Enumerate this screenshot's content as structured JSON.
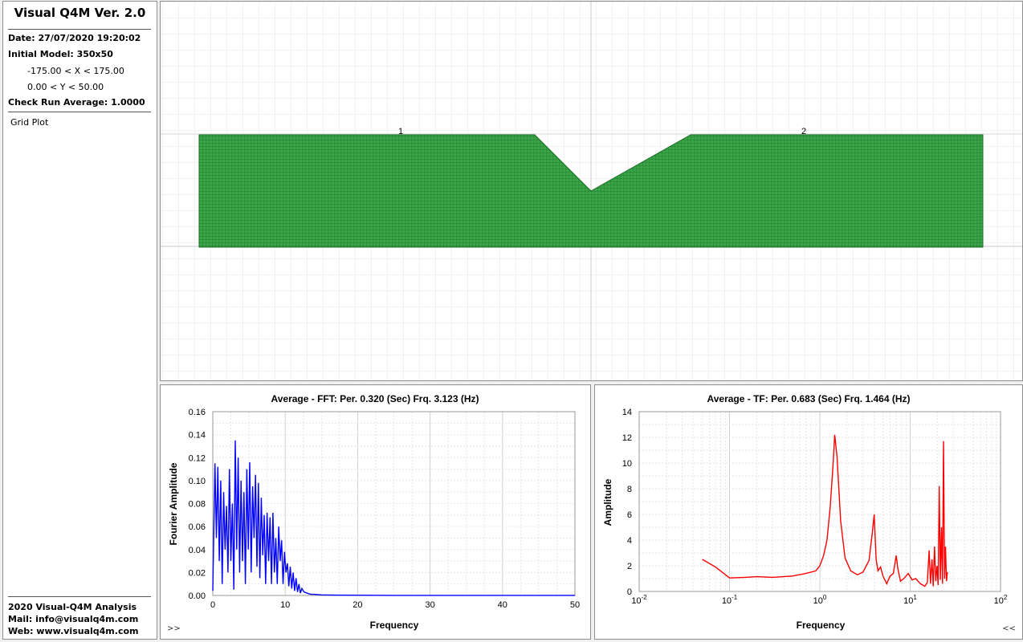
{
  "sidebar": {
    "app_title": "Visual Q4M Ver. 2.0",
    "date": "Date: 27/07/2020 19:20:02",
    "initial_model": "Initial Model: 350x50",
    "x_range": "-175.00 < X < 175.00",
    "y_range": "0.00 < Y < 50.00",
    "check_run": "Check Run Average: 1.0000",
    "menu_item": "Grid Plot",
    "footer_company": "2020 Visual-Q4M Analysis",
    "footer_mail": "Mail: info@visualq4m.com",
    "footer_web": "Web: www.visualq4m.com"
  },
  "grid_plot": {
    "mesh_color": "#2e9e3c",
    "labels": [
      "1",
      "2"
    ]
  },
  "fft_panel": {
    "nav_button": ">>",
    "chart_data": {
      "type": "line",
      "title": "Average - FFT: Per. 0.320 (Sec) Frq. 3.123 (Hz)",
      "xlabel": "Frequency",
      "ylabel": "Fourier Amplitude",
      "xlim": [
        0,
        50
      ],
      "ylim": [
        0,
        0.16
      ],
      "x_ticks": [
        "0",
        "10",
        "20",
        "30",
        "40",
        "50"
      ],
      "y_ticks": [
        "0.00",
        "0.02",
        "0.04",
        "0.06",
        "0.08",
        "0.10",
        "0.12",
        "0.14",
        "0.16"
      ],
      "color": "#0000ff",
      "grid": true,
      "series": [
        {
          "x": [
            0,
            0.3,
            0.5,
            0.7,
            0.9,
            1.1,
            1.3,
            1.5,
            1.7,
            1.9,
            2.1,
            2.3,
            2.5,
            2.7,
            2.9,
            3.1,
            3.3,
            3.5,
            3.7,
            3.9,
            4.1,
            4.3,
            4.5,
            4.7,
            4.9,
            5.1,
            5.3,
            5.5,
            5.7,
            5.9,
            6.1,
            6.3,
            6.5,
            6.7,
            6.9,
            7.1,
            7.3,
            7.5,
            7.7,
            7.9,
            8.1,
            8.3,
            8.5,
            8.7,
            8.9,
            9.1,
            9.3,
            9.5,
            9.7,
            9.9,
            10.1,
            10.3,
            10.5,
            10.7,
            10.9,
            11.1,
            11.3,
            11.5,
            11.7,
            11.9,
            12.1,
            12.3,
            12.6,
            13,
            13.5,
            14,
            15,
            17,
            20,
            25,
            30,
            35,
            40,
            45,
            50
          ],
          "y": [
            0.004,
            0.115,
            0.05,
            0.112,
            0.03,
            0.1,
            0.01,
            0.09,
            0.04,
            0.078,
            0.02,
            0.11,
            0.03,
            0.08,
            0.005,
            0.135,
            0.04,
            0.12,
            0.02,
            0.1,
            0.03,
            0.09,
            0.01,
            0.11,
            0.04,
            0.116,
            0.02,
            0.095,
            0.05,
            0.105,
            0.025,
            0.098,
            0.015,
            0.085,
            0.035,
            0.07,
            0.01,
            0.072,
            0.03,
            0.068,
            0.01,
            0.072,
            0.02,
            0.05,
            0.01,
            0.06,
            0.03,
            0.048,
            0.01,
            0.038,
            0.02,
            0.028,
            0.008,
            0.025,
            0.006,
            0.02,
            0.004,
            0.015,
            0.003,
            0.01,
            0.002,
            0.006,
            0.003,
            0.002,
            0.001,
            0.001,
            0.0005,
            0.0003,
            0.0002,
            0.0001,
            0.0001,
            0.0001,
            0.0001,
            0.0001,
            0.0001
          ]
        }
      ]
    }
  },
  "tf_panel": {
    "nav_button": "<<",
    "chart_data": {
      "type": "line",
      "title": "Average - TF: Per. 0.683 (Sec) Frq. 1.464 (Hz)",
      "xlabel": "Frequency",
      "ylabel": "Amplitude",
      "x_scale": "log",
      "xlim": [
        0.01,
        100
      ],
      "ylim": [
        0,
        14
      ],
      "x_ticks": [
        "10^-2",
        "10^-1",
        "10^0",
        "10^1",
        "10^2"
      ],
      "y_ticks": [
        "0",
        "2",
        "4",
        "6",
        "8",
        "10",
        "12",
        "14"
      ],
      "color": "#ff0000",
      "grid": true,
      "series": [
        {
          "x": [
            0.05,
            0.07,
            0.1,
            0.15,
            0.2,
            0.3,
            0.5,
            0.7,
            0.9,
            1.0,
            1.1,
            1.2,
            1.3,
            1.4,
            1.46,
            1.55,
            1.7,
            1.9,
            2.2,
            2.6,
            3.0,
            3.5,
            3.8,
            4.0,
            4.2,
            4.4,
            4.7,
            5.0,
            5.5,
            6.0,
            6.5,
            7.0,
            7.3,
            7.8,
            8.5,
            9.5,
            10.5,
            11.5,
            13,
            14.5,
            15.5,
            16.2,
            16.8,
            17.4,
            18,
            18.6,
            19.2,
            19.8,
            20.4,
            21,
            21.6,
            22.2,
            22.8,
            23.4,
            24,
            24.6,
            25.2,
            25.8
          ],
          "y": [
            2.5,
            1.9,
            1.05,
            1.1,
            1.15,
            1.1,
            1.2,
            1.4,
            1.6,
            2.0,
            2.8,
            4.0,
            6.5,
            9.8,
            12.2,
            10.5,
            5.5,
            2.6,
            1.6,
            1.3,
            1.5,
            2.4,
            4.5,
            6.0,
            2.5,
            1.6,
            1.9,
            1.2,
            0.6,
            1.2,
            1.4,
            2.8,
            1.8,
            0.8,
            1.0,
            1.4,
            0.9,
            1.0,
            0.6,
            0.4,
            0.7,
            3.2,
            0.6,
            2.5,
            0.4,
            3.5,
            0.8,
            2.0,
            0.5,
            8.2,
            0.9,
            5.0,
            0.6,
            11.7,
            1.0,
            3.5,
            0.8,
            1.5
          ]
        }
      ]
    }
  }
}
